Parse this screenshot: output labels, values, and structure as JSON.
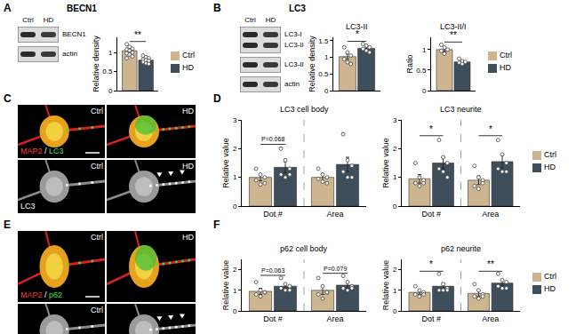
{
  "figure": {
    "panel_labels": [
      "A",
      "B",
      "C",
      "D",
      "E",
      "F"
    ],
    "blots": [
      {
        "title": "BECN1",
        "lanes": [
          "Ctrl",
          "HD"
        ],
        "rows": [
          [
            "BECN1"
          ],
          [
            "actin"
          ]
        ]
      },
      {
        "title": "LC3",
        "lanes": [
          "Ctrl",
          "HD"
        ],
        "rows": [
          [
            "LC3-I",
            "LC3-II"
          ],
          [
            "LC3-II"
          ],
          [
            "actin"
          ]
        ]
      }
    ],
    "micrographs": [
      {
        "merge": [
          {
            "text": "MAP2",
            "color": "#ff3a3a"
          },
          {
            "text": " / ",
            "color": "#ffffff"
          },
          {
            "text": "LC3",
            "color": "#3ee03e"
          }
        ],
        "conditions": [
          "Ctrl",
          "HD"
        ],
        "channel": "LC3",
        "channel_conditions": [
          "Ctrl",
          "HD"
        ]
      },
      {
        "merge": [
          {
            "text": "MAP2",
            "color": "#ff3a3a"
          },
          {
            "text": " / ",
            "color": "#ffffff"
          },
          {
            "text": "p62",
            "color": "#3ee03e"
          }
        ],
        "conditions": [
          "Ctrl",
          "HD"
        ],
        "channel_conditions": [
          "Ctrl"
        ]
      }
    ]
  },
  "chart_data": [
    {
      "type": "bar",
      "categories": [
        null
      ],
      "series": [
        {
          "name": "Ctrl",
          "color": "#cdb590",
          "values": [
            1.05
          ],
          "error": [
            0.04
          ],
          "points": [
            [
              1.22,
              1.15,
              1.1,
              1.08,
              1.05,
              1.0,
              0.98,
              0.95,
              0.9,
              0.85
            ]
          ]
        },
        {
          "name": "HD",
          "color": "#3e4f5b",
          "values": [
            0.8
          ],
          "error": [
            0.03
          ],
          "points": [
            [
              0.92,
              0.88,
              0.85,
              0.82,
              0.8,
              0.78,
              0.75,
              0.72,
              0.7
            ]
          ]
        }
      ],
      "ylabel": "Relative density",
      "ylim": [
        0,
        1.4
      ],
      "yticks": [
        0,
        0.5,
        1
      ],
      "annotations": [
        "**"
      ],
      "legend": "right",
      "tick_labels": "y"
    },
    {
      "type": "bar",
      "title": "LC3-II",
      "categories": [
        null
      ],
      "series": [
        {
          "name": "Ctrl",
          "color": "#cdb590",
          "values": [
            1.02
          ],
          "error": [
            0.08
          ],
          "points": [
            [
              1.3,
              1.15,
              1.05,
              0.95,
              0.85,
              0.8
            ]
          ]
        },
        {
          "name": "HD",
          "color": "#3e4f5b",
          "values": [
            1.27
          ],
          "error": [
            0.04
          ],
          "points": [
            [
              1.4,
              1.35,
              1.3,
              1.25,
              1.2,
              1.15
            ]
          ]
        }
      ],
      "ylabel": "Relative density",
      "ylim": [
        0,
        1.6
      ],
      "yticks": [
        0,
        0.5,
        1,
        1.5
      ],
      "annotations": [
        "*"
      ],
      "tick_labels": "y"
    },
    {
      "type": "bar",
      "title": "LC3-II/I",
      "categories": [
        null
      ],
      "series": [
        {
          "name": "Ctrl",
          "color": "#cdb590",
          "values": [
            1.0
          ],
          "error": [
            0.05
          ],
          "points": [
            [
              1.12,
              1.05,
              1.0,
              0.97,
              0.9
            ]
          ]
        },
        {
          "name": "HD",
          "color": "#3e4f5b",
          "values": [
            0.7
          ],
          "error": [
            0.03
          ],
          "points": [
            [
              0.78,
              0.72,
              0.7,
              0.68,
              0.65
            ]
          ]
        }
      ],
      "ylabel": "Ratio",
      "ylim": [
        0,
        1.3
      ],
      "yticks": [
        0,
        0.5,
        1
      ],
      "annotations": [
        "**"
      ],
      "legend": "right",
      "tick_labels": "y"
    },
    {
      "type": "bar",
      "title": "LC3 cell body",
      "categories": [
        "Dot #",
        "Area"
      ],
      "series": [
        {
          "name": "Ctrl",
          "color": "#cdb590",
          "values": [
            1.0,
            1.0
          ],
          "error": [
            0.12,
            0.12
          ],
          "points": [
            [
              1.3,
              1.1,
              1.0,
              0.9,
              0.75,
              0.8
            ],
            [
              1.3,
              1.1,
              1.0,
              0.95,
              0.85,
              0.8
            ]
          ]
        },
        {
          "name": "HD",
          "color": "#3e4f5b",
          "values": [
            1.35,
            1.45
          ],
          "error": [
            0.2,
            0.25
          ],
          "points": [
            [
              2.0,
              1.6,
              1.3,
              1.1,
              1.0,
              1.1
            ],
            [
              2.5,
              1.6,
              1.4,
              1.2,
              1.0,
              1.0
            ]
          ]
        }
      ],
      "ylabel": "Relative value",
      "ylim": [
        0,
        3
      ],
      "yticks": [
        0,
        1,
        2,
        3
      ],
      "annotations": [
        "P=0.068",
        null
      ]
    },
    {
      "type": "bar",
      "title": "LC3 neurite",
      "categories": [
        "Dot #",
        "Area"
      ],
      "series": [
        {
          "name": "Ctrl",
          "color": "#cdb590",
          "values": [
            0.95,
            0.9
          ],
          "error": [
            0.15,
            0.15
          ],
          "points": [
            [
              1.5,
              1.0,
              0.9,
              0.8,
              0.7,
              0.8
            ],
            [
              1.4,
              1.0,
              0.9,
              0.7,
              0.6,
              0.8
            ]
          ]
        },
        {
          "name": "HD",
          "color": "#3e4f5b",
          "values": [
            1.5,
            1.55
          ],
          "error": [
            0.2,
            0.22
          ],
          "points": [
            [
              2.3,
              1.7,
              1.5,
              1.3,
              1.2,
              1.0
            ],
            [
              2.3,
              1.8,
              1.5,
              1.3,
              1.2,
              1.2
            ]
          ]
        }
      ],
      "ylabel": "Relative value",
      "ylim": [
        0,
        3
      ],
      "yticks": [
        0,
        1,
        2,
        3
      ],
      "annotations": [
        "*",
        "*"
      ],
      "legend": "right"
    },
    {
      "type": "bar",
      "title": "p62 cell body",
      "categories": [
        "Dot #",
        "Area"
      ],
      "series": [
        {
          "name": "Ctrl",
          "color": "#cdb590",
          "values": [
            0.95,
            1.0
          ],
          "error": [
            0.15,
            0.2
          ],
          "points": [
            [
              1.4,
              1.0,
              0.9,
              0.8,
              0.7,
              0.9
            ],
            [
              1.6,
              1.2,
              0.9,
              0.8,
              0.6,
              0.9
            ]
          ]
        },
        {
          "name": "HD",
          "color": "#3e4f5b",
          "values": [
            1.2,
            1.25
          ],
          "error": [
            0.12,
            0.15
          ],
          "points": [
            [
              1.6,
              1.3,
              1.2,
              1.1,
              1.0,
              1.0
            ],
            [
              1.7,
              1.4,
              1.2,
              1.1,
              1.0,
              1.1
            ]
          ]
        }
      ],
      "ylabel": "Relative value",
      "ylim": [
        0,
        2.5
      ],
      "yticks": [
        0,
        1,
        2
      ],
      "annotations": [
        "P=0.063",
        "P=0.079"
      ]
    },
    {
      "type": "bar",
      "title": "p62 neurite",
      "categories": [
        "Dot #",
        "Area"
      ],
      "series": [
        {
          "name": "Ctrl",
          "color": "#cdb590",
          "values": [
            0.9,
            0.85
          ],
          "error": [
            0.1,
            0.15
          ],
          "points": [
            [
              1.2,
              1.0,
              0.9,
              0.8,
              0.7,
              0.8
            ],
            [
              1.3,
              1.0,
              0.8,
              0.7,
              0.6,
              0.7
            ]
          ]
        },
        {
          "name": "HD",
          "color": "#3e4f5b",
          "values": [
            1.2,
            1.35
          ],
          "error": [
            0.15,
            0.12
          ],
          "points": [
            [
              1.8,
              1.3,
              1.1,
              1.0,
              1.0,
              1.0
            ],
            [
              1.8,
              1.5,
              1.4,
              1.2,
              1.1,
              1.1
            ]
          ]
        }
      ],
      "ylabel": "Relative value",
      "ylim": [
        0,
        2.5
      ],
      "yticks": [
        0,
        1,
        2
      ],
      "annotations": [
        "*",
        "**"
      ],
      "legend": "right"
    }
  ]
}
